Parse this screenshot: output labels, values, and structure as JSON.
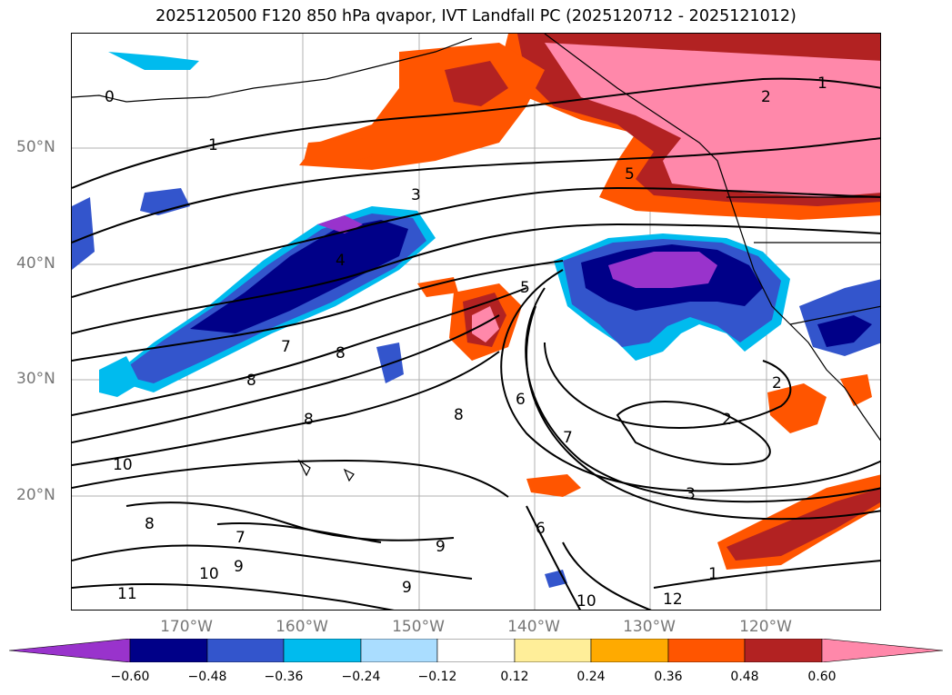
{
  "title": "2025120500 F120 850 hPa qvapor, IVT Landfall PC (2025120712 - 2025121012)",
  "lat_labels": [
    "50°N",
    "40°N",
    "30°N",
    "20°N"
  ],
  "lon_labels": [
    "170°W",
    "160°W",
    "150°W",
    "140°W",
    "130°W",
    "120°W"
  ],
  "colorbar": {
    "ticks": [
      "−0.60",
      "−0.48",
      "−0.36",
      "−0.24",
      "−0.12",
      "0.12",
      "0.24",
      "0.36",
      "0.48",
      "0.60"
    ],
    "colors": [
      "#9933cc",
      "#000088",
      "#3355cc",
      "#00bbee",
      "#aaddff",
      "#ffffff",
      "#ffee99",
      "#ffaa00",
      "#ff5500",
      "#b22222",
      "#ff88aa"
    ]
  },
  "contour_labels": [
    "0",
    "1",
    "1",
    "2",
    "3",
    "4",
    "5",
    "5",
    "6",
    "6",
    "7",
    "7",
    "7",
    "8",
    "8",
    "8",
    "8",
    "9",
    "9",
    "10",
    "10",
    "10",
    "11",
    "12",
    "2",
    "3",
    "2",
    "8",
    "9",
    "1"
  ],
  "fill_colors": {
    "pink": "#ff88aa",
    "darkred": "#b22222",
    "orange": "#ff5500",
    "amber": "#ffaa00",
    "violet": "#9933cc",
    "navy": "#000088",
    "blue": "#3355cc",
    "cyan": "#00bbee"
  }
}
